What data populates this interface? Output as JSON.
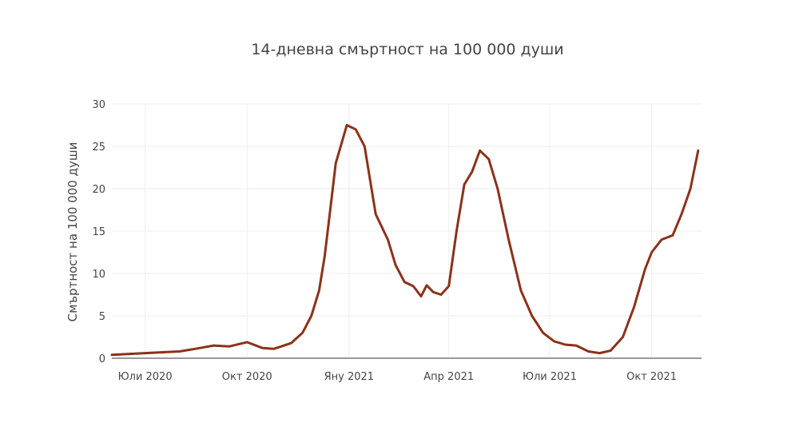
{
  "chart_data": {
    "type": "line",
    "title": "14-дневна смъртност на 100 000 души",
    "ylabel": "Смъртност на 100 000 души",
    "xlabel": "",
    "ylim": [
      0,
      30
    ],
    "xlim": [
      "2020-06-01",
      "2021-11-15"
    ],
    "yticks": [
      0,
      5,
      10,
      15,
      20,
      25,
      30
    ],
    "xticks": [
      {
        "date": "2020-07-01",
        "label": "Юли 2020"
      },
      {
        "date": "2020-10-01",
        "label": "Окт 2020"
      },
      {
        "date": "2021-01-01",
        "label": "Яну 2021"
      },
      {
        "date": "2021-04-01",
        "label": "Апр 2021"
      },
      {
        "date": "2021-07-01",
        "label": "Юли 2021"
      },
      {
        "date": "2021-10-01",
        "label": "Окт 2021"
      }
    ],
    "grid": true,
    "legend": "none",
    "color": "#8b3219",
    "series": [
      {
        "name": "",
        "x": [
          "2020-06-01",
          "2020-06-15",
          "2020-07-01",
          "2020-07-15",
          "2020-08-01",
          "2020-08-15",
          "2020-09-01",
          "2020-09-15",
          "2020-10-01",
          "2020-10-15",
          "2020-10-25",
          "2020-11-01",
          "2020-11-10",
          "2020-11-20",
          "2020-11-28",
          "2020-12-05",
          "2020-12-10",
          "2020-12-15",
          "2020-12-20",
          "2020-12-30",
          "2021-01-07",
          "2021-01-15",
          "2021-01-25",
          "2021-02-05",
          "2021-02-12",
          "2021-02-20",
          "2021-02-28",
          "2021-03-07",
          "2021-03-12",
          "2021-03-18",
          "2021-03-25",
          "2021-04-01",
          "2021-04-08",
          "2021-04-15",
          "2021-04-22",
          "2021-04-29",
          "2021-05-07",
          "2021-05-15",
          "2021-05-25",
          "2021-06-05",
          "2021-06-15",
          "2021-06-25",
          "2021-07-05",
          "2021-07-15",
          "2021-07-25",
          "2021-08-05",
          "2021-08-15",
          "2021-08-25",
          "2021-09-05",
          "2021-09-15",
          "2021-09-25",
          "2021-10-01",
          "2021-10-10",
          "2021-10-20",
          "2021-10-28",
          "2021-11-05",
          "2021-11-12"
        ],
        "y": [
          0.4,
          0.5,
          0.6,
          0.7,
          0.8,
          1.1,
          1.5,
          1.4,
          1.9,
          1.2,
          1.1,
          1.4,
          1.8,
          3.0,
          5.0,
          8.0,
          12.0,
          17.5,
          23.0,
          27.5,
          27.0,
          25.0,
          17.0,
          14.0,
          11.0,
          9.0,
          8.5,
          7.3,
          8.6,
          7.8,
          7.5,
          8.5,
          15.0,
          20.5,
          22.0,
          24.5,
          23.5,
          20.0,
          14.0,
          8.0,
          5.0,
          3.0,
          2.0,
          1.6,
          1.5,
          0.8,
          0.6,
          0.9,
          2.5,
          6.0,
          10.5,
          12.5,
          14.0,
          14.5,
          17.0,
          20.0,
          24.5
        ]
      }
    ]
  }
}
